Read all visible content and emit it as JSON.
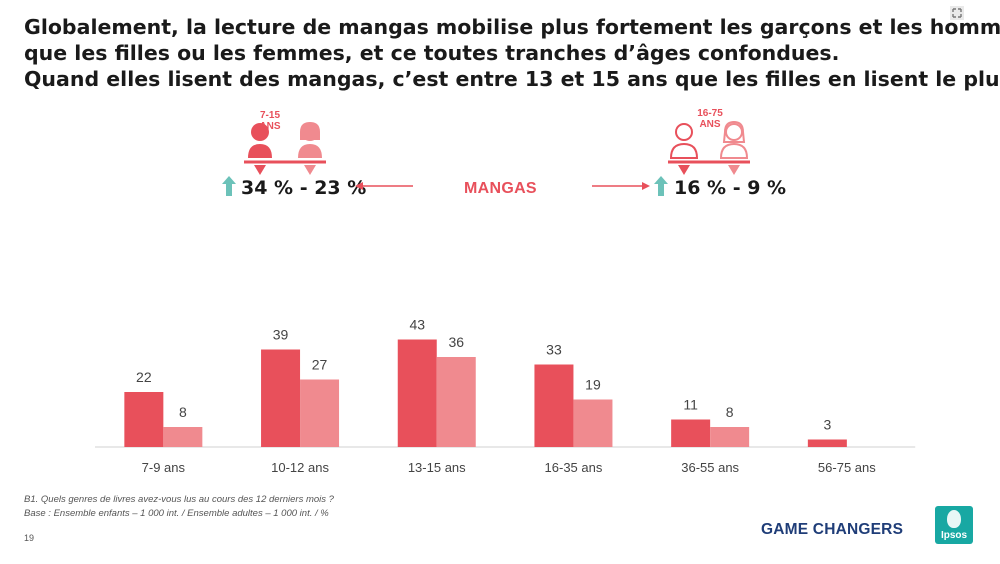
{
  "title_lines": [
    "Globalement, la lecture de mangas mobilise plus fortement les garçons et les hommes",
    "que les filles ou les femmes, et ce toutes tranches d’âges confondues.",
    "Quand elles lisent des mangas, c’est entre 13 et 15 ans que les filles en lisent le plus."
  ],
  "infographic": {
    "center_label": "MANGAS",
    "left": {
      "age_line1": "7-15",
      "age_line2": "ANS",
      "stat": "34 % - 23 %"
    },
    "right": {
      "age_line1": "16-75",
      "age_line2": "ANS",
      "stat": "16 % - 9 %"
    },
    "colors": {
      "accent": "#e8505b",
      "light": "#f08a8f",
      "arrow_up": "#6cc2b9"
    }
  },
  "chart_data": {
    "type": "bar",
    "categories": [
      "7-9 ans",
      "10-12 ans",
      "13-15 ans",
      "16-35 ans",
      "36-55 ans",
      "56-75 ans"
    ],
    "series": [
      {
        "values": [
          22,
          39,
          43,
          33,
          11,
          3
        ],
        "color": "#e8505b"
      },
      {
        "values": [
          8,
          27,
          36,
          19,
          8,
          null
        ],
        "color": "#f08a8f"
      }
    ],
    "ylim": [
      0,
      45
    ],
    "grid": false,
    "legend": "none"
  },
  "footnote": {
    "line1": "B1. Quels genres de livres avez-vous lus au cours des 12 derniers mois ?",
    "line2": "Base : Ensemble enfants – 1 000 int. / Ensemble adultes – 1 000 int. / %"
  },
  "page_number": "19",
  "brand": "GAME CHANGERS",
  "logo_text": "Ipsos"
}
